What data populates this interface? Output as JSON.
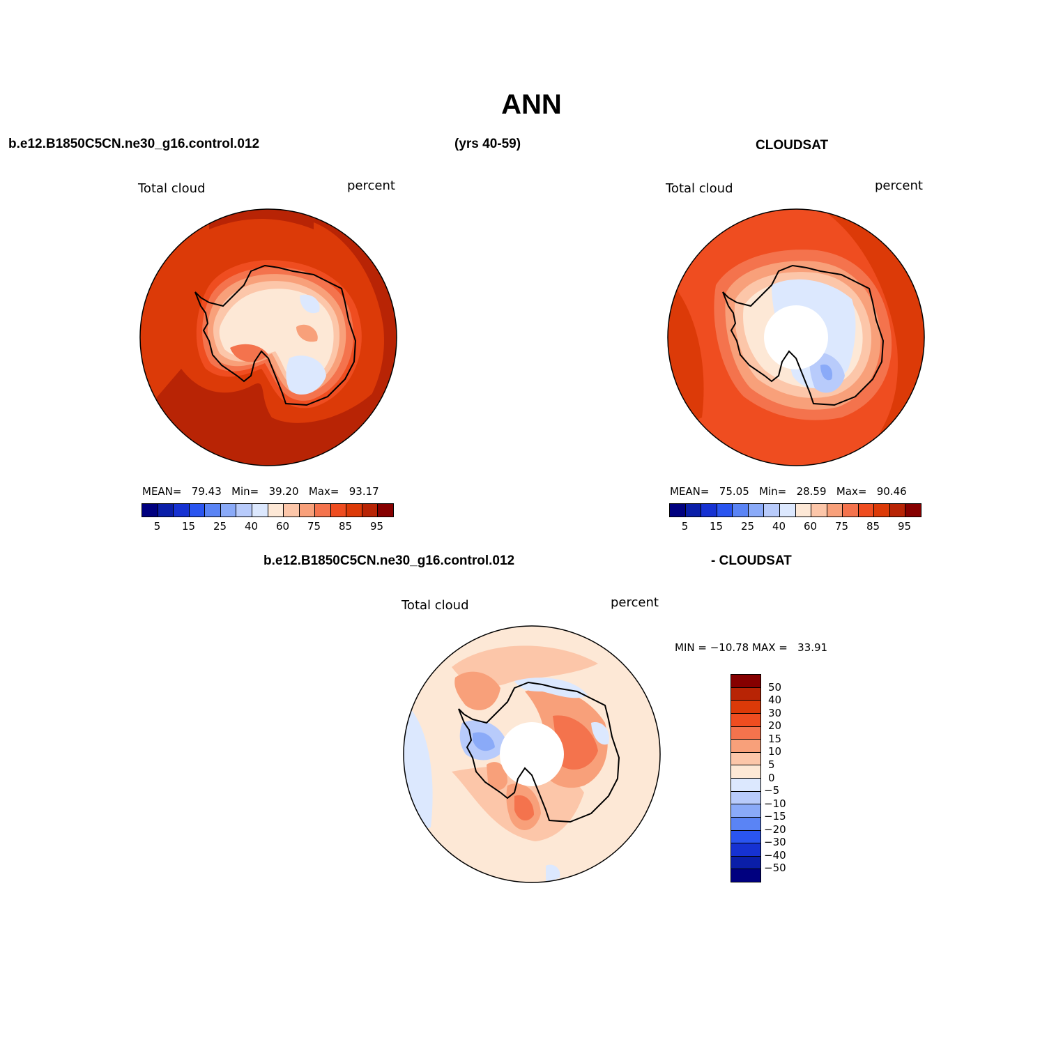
{
  "figure": {
    "title": "ANN",
    "case_name": "b.e12.B1850C5CN.ne30_g16.control.012",
    "years": "(yrs 40-59)",
    "obs_name": "CLOUDSAT",
    "diff_case": "b.e12.B1850C5CN.ne30_g16.control.012",
    "diff_obs": "- CLOUDSAT"
  },
  "panels": {
    "model": {
      "variable": "Total cloud",
      "units": "percent",
      "stats": {
        "mean_label": "MEAN=",
        "mean": "79.43",
        "min_label": "Min=",
        "min": "39.20",
        "max_label": "Max=",
        "max": "93.17"
      },
      "colorbar_ticks": [
        "5",
        "15",
        "25",
        "40",
        "60",
        "75",
        "85",
        "95"
      ]
    },
    "obs": {
      "variable": "Total cloud",
      "units": "percent",
      "stats": {
        "mean_label": "MEAN=",
        "mean": "75.05",
        "min_label": "Min=",
        "min": "28.59",
        "max_label": "Max=",
        "max": "90.46"
      },
      "colorbar_ticks": [
        "5",
        "15",
        "25",
        "40",
        "60",
        "75",
        "85",
        "95"
      ]
    },
    "diff": {
      "variable": "Total cloud",
      "units": "percent",
      "stats": {
        "min_label": "MIN =",
        "min": "−10.78",
        "max_label": "MAX =",
        "max": "33.91"
      },
      "colorbar_ticks": [
        "50",
        "40",
        "30",
        "20",
        "15",
        "10",
        "5",
        "0",
        "−5",
        "−10",
        "−15",
        "−20",
        "−30",
        "−40",
        "−50"
      ]
    }
  },
  "colors": {
    "abs_scale": [
      "#00007f",
      "#0a1ea8",
      "#1632d2",
      "#2a55f0",
      "#5a84f5",
      "#8aaaf8",
      "#b8cbfb",
      "#dce8fe",
      "#fde8d6",
      "#fcc6a9",
      "#f8a07a",
      "#f4734d",
      "#ef4d20",
      "#dc3a08",
      "#b82405",
      "#860000"
    ],
    "diff_scale": [
      "#860000",
      "#b82405",
      "#dc3a08",
      "#ef4d20",
      "#f4734d",
      "#f8a07a",
      "#fcc6a9",
      "#fde8d6",
      "#dce8fe",
      "#b8cbfb",
      "#8aaaf8",
      "#5a84f5",
      "#2a55f0",
      "#1632d2",
      "#0a1ea8",
      "#00007f"
    ]
  }
}
